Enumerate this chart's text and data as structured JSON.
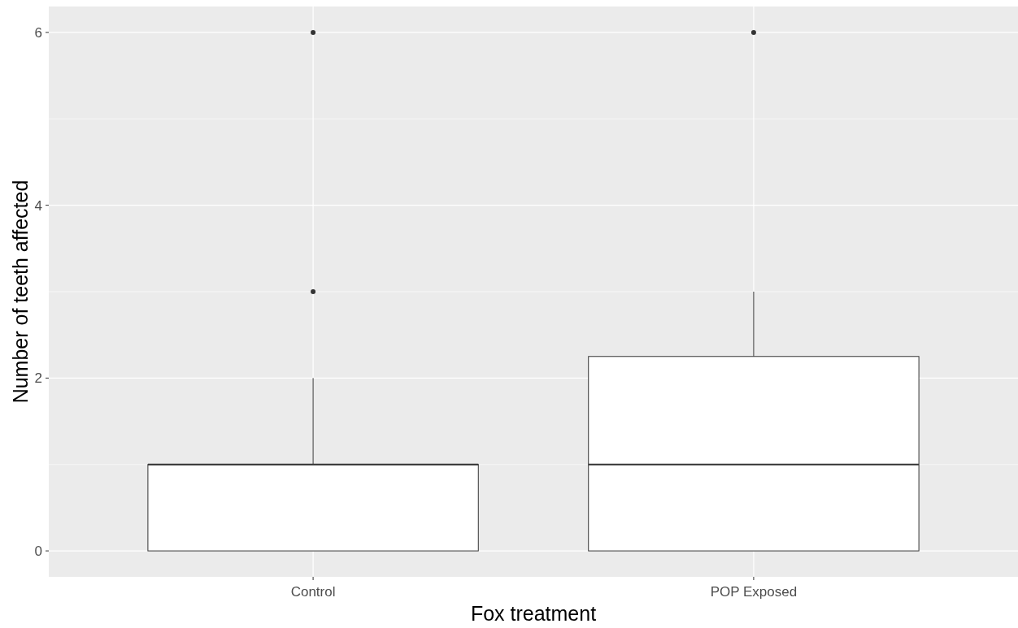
{
  "chart_data": {
    "type": "box",
    "xlabel": "Fox treatment",
    "ylabel": "Number of teeth affected",
    "categories": [
      "Control",
      "POP Exposed"
    ],
    "boxes": [
      {
        "low": 0,
        "q1": 0,
        "median": 1,
        "q3": 1,
        "high": 2,
        "outliers": [
          3,
          6
        ]
      },
      {
        "low": 0,
        "q1": 0,
        "median": 1,
        "q3": 2.25,
        "high": 3,
        "outliers": [
          6
        ]
      }
    ],
    "ylim": [
      -0.3,
      6.3
    ],
    "yticks": [
      0,
      2,
      4,
      6
    ],
    "grid": true
  }
}
